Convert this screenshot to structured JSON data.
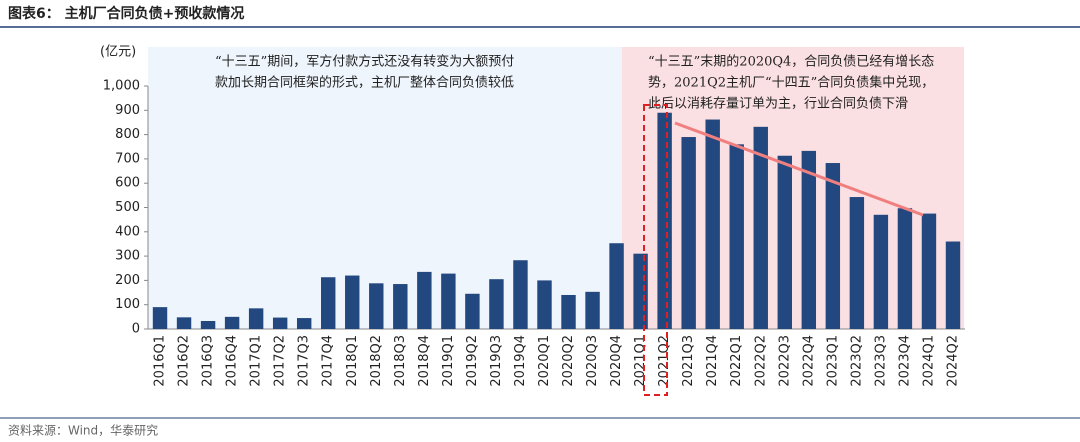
{
  "chart_data": {
    "type": "bar",
    "title": "图表6：  主机厂合同负债+预收款情况",
    "y_unit": "(亿元)",
    "categories": [
      "2016Q1",
      "2016Q2",
      "2016Q3",
      "2016Q4",
      "2017Q1",
      "2017Q2",
      "2017Q3",
      "2017Q4",
      "2018Q1",
      "2018Q2",
      "2018Q3",
      "2018Q4",
      "2019Q1",
      "2019Q2",
      "2019Q3",
      "2019Q4",
      "2020Q1",
      "2020Q2",
      "2020Q3",
      "2020Q4",
      "2021Q1",
      "2021Q2",
      "2021Q3",
      "2021Q4",
      "2022Q1",
      "2022Q2",
      "2022Q3",
      "2022Q4",
      "2023Q1",
      "2023Q2",
      "2023Q3",
      "2023Q4",
      "2024Q1",
      "2024Q2"
    ],
    "values": [
      90,
      48,
      33,
      50,
      85,
      47,
      45,
      213,
      220,
      188,
      185,
      235,
      228,
      145,
      205,
      283,
      200,
      140,
      153,
      353,
      310,
      890,
      790,
      862,
      760,
      832,
      713,
      733,
      683,
      543,
      470,
      497,
      475,
      360
    ],
    "color": "#23487f",
    "ylim": [
      0,
      1000
    ],
    "yticks": [
      0,
      100,
      200,
      300,
      400,
      500,
      600,
      700,
      800,
      900,
      {
        "value": 1000,
        "label": "1,000"
      }
    ],
    "annotations": [
      [
        "“十三五”期间，军方付款方式还没有转变为大额预付",
        "款加长期合同框架的形式，主机厂整体合同负债较低"
      ],
      [
        "“十三五”末期的2020Q4，合同负债已经有增长态",
        "势，2021Q2主机厂“十四五”合同负债集中兑现，",
        "此后以消耗存量订单为主，行业合同负债下滑"
      ]
    ],
    "source": "资料来源：Wind，华泰研究"
  }
}
